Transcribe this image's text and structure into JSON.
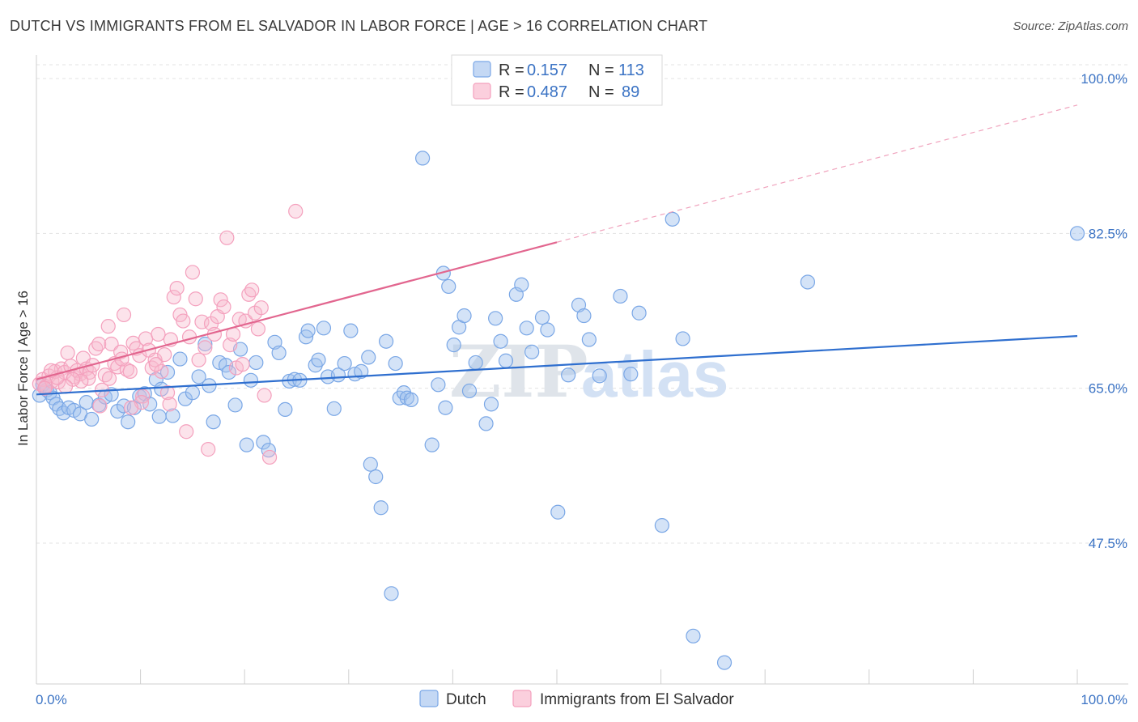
{
  "header": {
    "title": "DUTCH VS IMMIGRANTS FROM EL SALVADOR IN LABOR FORCE | AGE > 16 CORRELATION CHART",
    "source": "Source: ZipAtlas.com"
  },
  "watermark": {
    "zip": "ZIP",
    "atlas": "atlas"
  },
  "legend": {
    "rows": [
      {
        "r_label": "R =",
        "r_value": "0.157",
        "n_label": "N =",
        "n_value": "113"
      },
      {
        "r_label": "R =",
        "r_value": "0.487",
        "n_label": "N =",
        "n_value": "89"
      }
    ]
  },
  "bottom_legend": {
    "dutch": "Dutch",
    "salvador": "Immigrants from El Salvador"
  },
  "chart_data": {
    "type": "scatter",
    "title": "DUTCH VS IMMIGRANTS FROM EL SALVADOR IN LABOR FORCE | AGE > 16 CORRELATION CHART",
    "ylabel": "In Labor Force | Age > 16",
    "xlabel": "",
    "xlim": [
      0,
      100
    ],
    "ylim": [
      30,
      100
    ],
    "x_tick_labels": [
      "0.0%",
      "100.0%"
    ],
    "y_ticks": [
      {
        "value": 100,
        "label": "100.0%"
      },
      {
        "value": 82.5,
        "label": "82.5%"
      },
      {
        "value": 65,
        "label": "65.0%"
      },
      {
        "value": 47.5,
        "label": "47.5%"
      }
    ],
    "grid": true,
    "legend_position": "top-center",
    "series": [
      {
        "name": "Dutch",
        "color": "#7aa7e6",
        "trend": {
          "x0": 0,
          "y0": 64.3,
          "x1": 100,
          "y1": 70.9
        },
        "points": [
          [
            0.3,
            64.2
          ],
          [
            0.6,
            65.4
          ],
          [
            0.8,
            65.0
          ],
          [
            1.0,
            64.8
          ],
          [
            1.3,
            64.5
          ],
          [
            1.6,
            63.9
          ],
          [
            1.9,
            63.2
          ],
          [
            2.2,
            62.7
          ],
          [
            2.6,
            62.2
          ],
          [
            3.1,
            62.8
          ],
          [
            3.6,
            62.5
          ],
          [
            4.2,
            62.1
          ],
          [
            4.8,
            63.4
          ],
          [
            5.3,
            61.5
          ],
          [
            6.0,
            63.1
          ],
          [
            6.6,
            64.0
          ],
          [
            7.2,
            64.3
          ],
          [
            7.8,
            62.4
          ],
          [
            8.4,
            63.0
          ],
          [
            8.8,
            61.2
          ],
          [
            9.4,
            62.8
          ],
          [
            9.9,
            64.1
          ],
          [
            10.4,
            64.4
          ],
          [
            10.9,
            63.2
          ],
          [
            11.5,
            66.0
          ],
          [
            12.0,
            64.9
          ],
          [
            12.6,
            66.8
          ],
          [
            11.8,
            61.8
          ],
          [
            13.1,
            61.9
          ],
          [
            13.8,
            68.3
          ],
          [
            14.3,
            63.8
          ],
          [
            15.0,
            64.5
          ],
          [
            15.6,
            66.3
          ],
          [
            16.2,
            70.0
          ],
          [
            16.6,
            65.3
          ],
          [
            17.0,
            61.2
          ],
          [
            17.6,
            67.9
          ],
          [
            18.2,
            67.6
          ],
          [
            18.5,
            66.8
          ],
          [
            19.1,
            63.1
          ],
          [
            19.6,
            69.4
          ],
          [
            20.2,
            58.6
          ],
          [
            20.6,
            65.9
          ],
          [
            21.1,
            67.9
          ],
          [
            21.8,
            58.9
          ],
          [
            22.3,
            58.0
          ],
          [
            22.9,
            70.2
          ],
          [
            23.3,
            69.0
          ],
          [
            23.9,
            62.6
          ],
          [
            24.3,
            65.8
          ],
          [
            24.8,
            66.0
          ],
          [
            25.3,
            65.9
          ],
          [
            25.9,
            70.8
          ],
          [
            26.1,
            71.5
          ],
          [
            26.8,
            67.6
          ],
          [
            27.1,
            68.2
          ],
          [
            27.6,
            71.8
          ],
          [
            28.0,
            66.3
          ],
          [
            28.6,
            62.7
          ],
          [
            29.0,
            66.5
          ],
          [
            29.6,
            67.8
          ],
          [
            30.2,
            71.5
          ],
          [
            30.6,
            66.6
          ],
          [
            31.2,
            66.9
          ],
          [
            31.9,
            68.5
          ],
          [
            32.1,
            56.4
          ],
          [
            32.6,
            55.0
          ],
          [
            33.1,
            51.5
          ],
          [
            33.6,
            70.3
          ],
          [
            34.1,
            41.8
          ],
          [
            34.5,
            67.8
          ],
          [
            34.9,
            63.9
          ],
          [
            35.3,
            64.5
          ],
          [
            35.6,
            63.9
          ],
          [
            36.0,
            63.7
          ],
          [
            37.1,
            91.0
          ],
          [
            38.0,
            58.6
          ],
          [
            38.6,
            65.4
          ],
          [
            39.1,
            78.0
          ],
          [
            39.6,
            76.5
          ],
          [
            39.3,
            62.8
          ],
          [
            40.1,
            69.9
          ],
          [
            40.6,
            71.9
          ],
          [
            41.1,
            73.2
          ],
          [
            41.6,
            64.7
          ],
          [
            42.2,
            67.9
          ],
          [
            43.2,
            61.0
          ],
          [
            43.7,
            63.2
          ],
          [
            44.1,
            72.9
          ],
          [
            44.6,
            70.3
          ],
          [
            45.1,
            68.1
          ],
          [
            46.1,
            75.6
          ],
          [
            46.6,
            76.7
          ],
          [
            47.1,
            71.8
          ],
          [
            47.6,
            69.1
          ],
          [
            48.6,
            73.0
          ],
          [
            49.1,
            71.6
          ],
          [
            50.1,
            51.0
          ],
          [
            51.1,
            66.5
          ],
          [
            52.1,
            74.4
          ],
          [
            52.6,
            73.2
          ],
          [
            53.1,
            70.5
          ],
          [
            54.1,
            66.4
          ],
          [
            56.1,
            75.4
          ],
          [
            57.1,
            66.6
          ],
          [
            57.9,
            73.5
          ],
          [
            60.1,
            49.5
          ],
          [
            61.1,
            84.1
          ],
          [
            62.1,
            70.6
          ],
          [
            63.1,
            37.0
          ],
          [
            66.1,
            34.0
          ],
          [
            74.1,
            77.0
          ],
          [
            100.0,
            82.5
          ]
        ]
      },
      {
        "name": "Immigrants from El Salvador",
        "color": "#f4a0bd",
        "trend": {
          "x0": 0,
          "y0": 66.0,
          "x1": 100,
          "y1": 97.0,
          "solid_until": 50
        },
        "points": [
          [
            0.3,
            65.5
          ],
          [
            0.6,
            66.0
          ],
          [
            0.9,
            65.2
          ],
          [
            1.2,
            66.4
          ],
          [
            1.5,
            65.8
          ],
          [
            1.8,
            66.9
          ],
          [
            2.1,
            65.7
          ],
          [
            2.4,
            67.2
          ],
          [
            2.7,
            66.8
          ],
          [
            3.0,
            69.0
          ],
          [
            3.3,
            67.5
          ],
          [
            3.6,
            66.3
          ],
          [
            3.9,
            67.0
          ],
          [
            4.2,
            66.6
          ],
          [
            4.5,
            68.4
          ],
          [
            4.8,
            67.2
          ],
          [
            5.1,
            66.8
          ],
          [
            5.4,
            67.6
          ],
          [
            5.7,
            69.5
          ],
          [
            6.0,
            70.0
          ],
          [
            6.3,
            64.8
          ],
          [
            6.6,
            66.5
          ],
          [
            6.9,
            72.0
          ],
          [
            7.2,
            70.0
          ],
          [
            7.5,
            67.8
          ],
          [
            7.8,
            67.4
          ],
          [
            8.1,
            69.1
          ],
          [
            8.4,
            73.3
          ],
          [
            8.7,
            67.1
          ],
          [
            9.0,
            66.9
          ],
          [
            9.3,
            70.1
          ],
          [
            9.6,
            69.5
          ],
          [
            9.9,
            68.7
          ],
          [
            10.2,
            64.1
          ],
          [
            10.5,
            70.6
          ],
          [
            10.8,
            69.3
          ],
          [
            11.1,
            67.3
          ],
          [
            11.4,
            68.2
          ],
          [
            11.7,
            71.1
          ],
          [
            12.0,
            66.9
          ],
          [
            12.3,
            68.8
          ],
          [
            12.6,
            64.5
          ],
          [
            12.9,
            70.5
          ],
          [
            13.2,
            75.3
          ],
          [
            13.5,
            76.3
          ],
          [
            13.8,
            73.3
          ],
          [
            14.1,
            72.6
          ],
          [
            14.4,
            60.1
          ],
          [
            14.7,
            70.8
          ],
          [
            15.0,
            78.1
          ],
          [
            15.3,
            75.1
          ],
          [
            15.6,
            68.2
          ],
          [
            15.9,
            72.5
          ],
          [
            16.2,
            69.6
          ],
          [
            16.5,
            58.1
          ],
          [
            16.8,
            72.3
          ],
          [
            17.1,
            71.1
          ],
          [
            17.4,
            73.1
          ],
          [
            17.7,
            75.0
          ],
          [
            18.0,
            74.2
          ],
          [
            18.3,
            82.0
          ],
          [
            18.6,
            69.9
          ],
          [
            18.9,
            71.1
          ],
          [
            19.2,
            67.3
          ],
          [
            19.5,
            72.8
          ],
          [
            19.8,
            67.7
          ],
          [
            20.1,
            72.6
          ],
          [
            20.4,
            75.6
          ],
          [
            20.7,
            76.1
          ],
          [
            21.0,
            73.5
          ],
          [
            21.3,
            71.7
          ],
          [
            21.6,
            74.1
          ],
          [
            21.9,
            64.2
          ],
          [
            22.4,
            57.2
          ],
          [
            24.9,
            85.0
          ],
          [
            11.5,
            67.7
          ],
          [
            12.8,
            63.2
          ],
          [
            10.1,
            63.4
          ],
          [
            9.1,
            62.8
          ],
          [
            8.2,
            68.3
          ],
          [
            7.0,
            66.1
          ],
          [
            6.1,
            63.0
          ],
          [
            5.0,
            66.1
          ],
          [
            4.3,
            65.8
          ],
          [
            3.5,
            66.0
          ],
          [
            2.8,
            65.2
          ],
          [
            2.0,
            66.2
          ],
          [
            1.4,
            67.0
          ],
          [
            0.8,
            65.0
          ]
        ]
      }
    ]
  }
}
